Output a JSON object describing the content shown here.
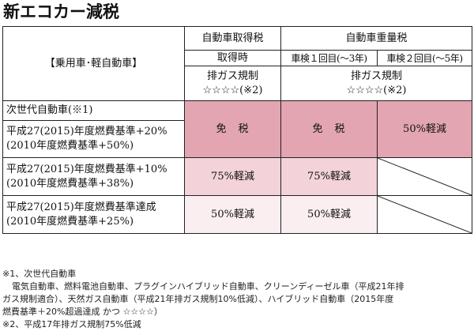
{
  "title": "新エコカー減税",
  "header": {
    "category_label": "【乗用車･軽自動車】",
    "acquisition_tax": "自動車取得税",
    "weight_tax": "自動車重量税",
    "at_acquisition": "取得時",
    "first_inspection": "車検１回目(～3年)",
    "second_inspection": "車検２回目(～5年)",
    "emission_regulation": "排ガス規制",
    "stars_note": "☆☆☆☆(※2)"
  },
  "rows": [
    {
      "line1": "次世代自動車(※1)",
      "line2": "平成27(2015)年度燃費基準+20%",
      "line3": "(2010年度燃費基準+50%)",
      "acquisition": "免　税",
      "first": "免　税",
      "second": "50%軽減"
    },
    {
      "line1": "平成27(2015)年度燃費基準+10%",
      "line2": "(2010年度燃費基準+38%)",
      "acquisition": "75%軽減",
      "first": "75%軽減",
      "second": ""
    },
    {
      "line1": "平成27(2015)年度燃費基準達成",
      "line2": "(2010年度燃費基準+25%)",
      "acquisition": "50%軽減",
      "first": "50%軽減",
      "second": ""
    }
  ],
  "notes": {
    "note1_title": "※1、次世代自動車",
    "note1_line1": "電気自動車、燃料電池自動車、プラグインハイブリッド自動車、クリーンディーゼル車（平成21年排",
    "note1_line2": "ガス規制適合）、天然ガス自動車（平成21年排ガス規制10%低減）、ハイブリッド自動車（2015年度",
    "note1_line3": "燃費基準＋20%超過達成 かつ ☆☆☆☆）",
    "note2": "※2、平成17年排ガス規制75%低減"
  }
}
